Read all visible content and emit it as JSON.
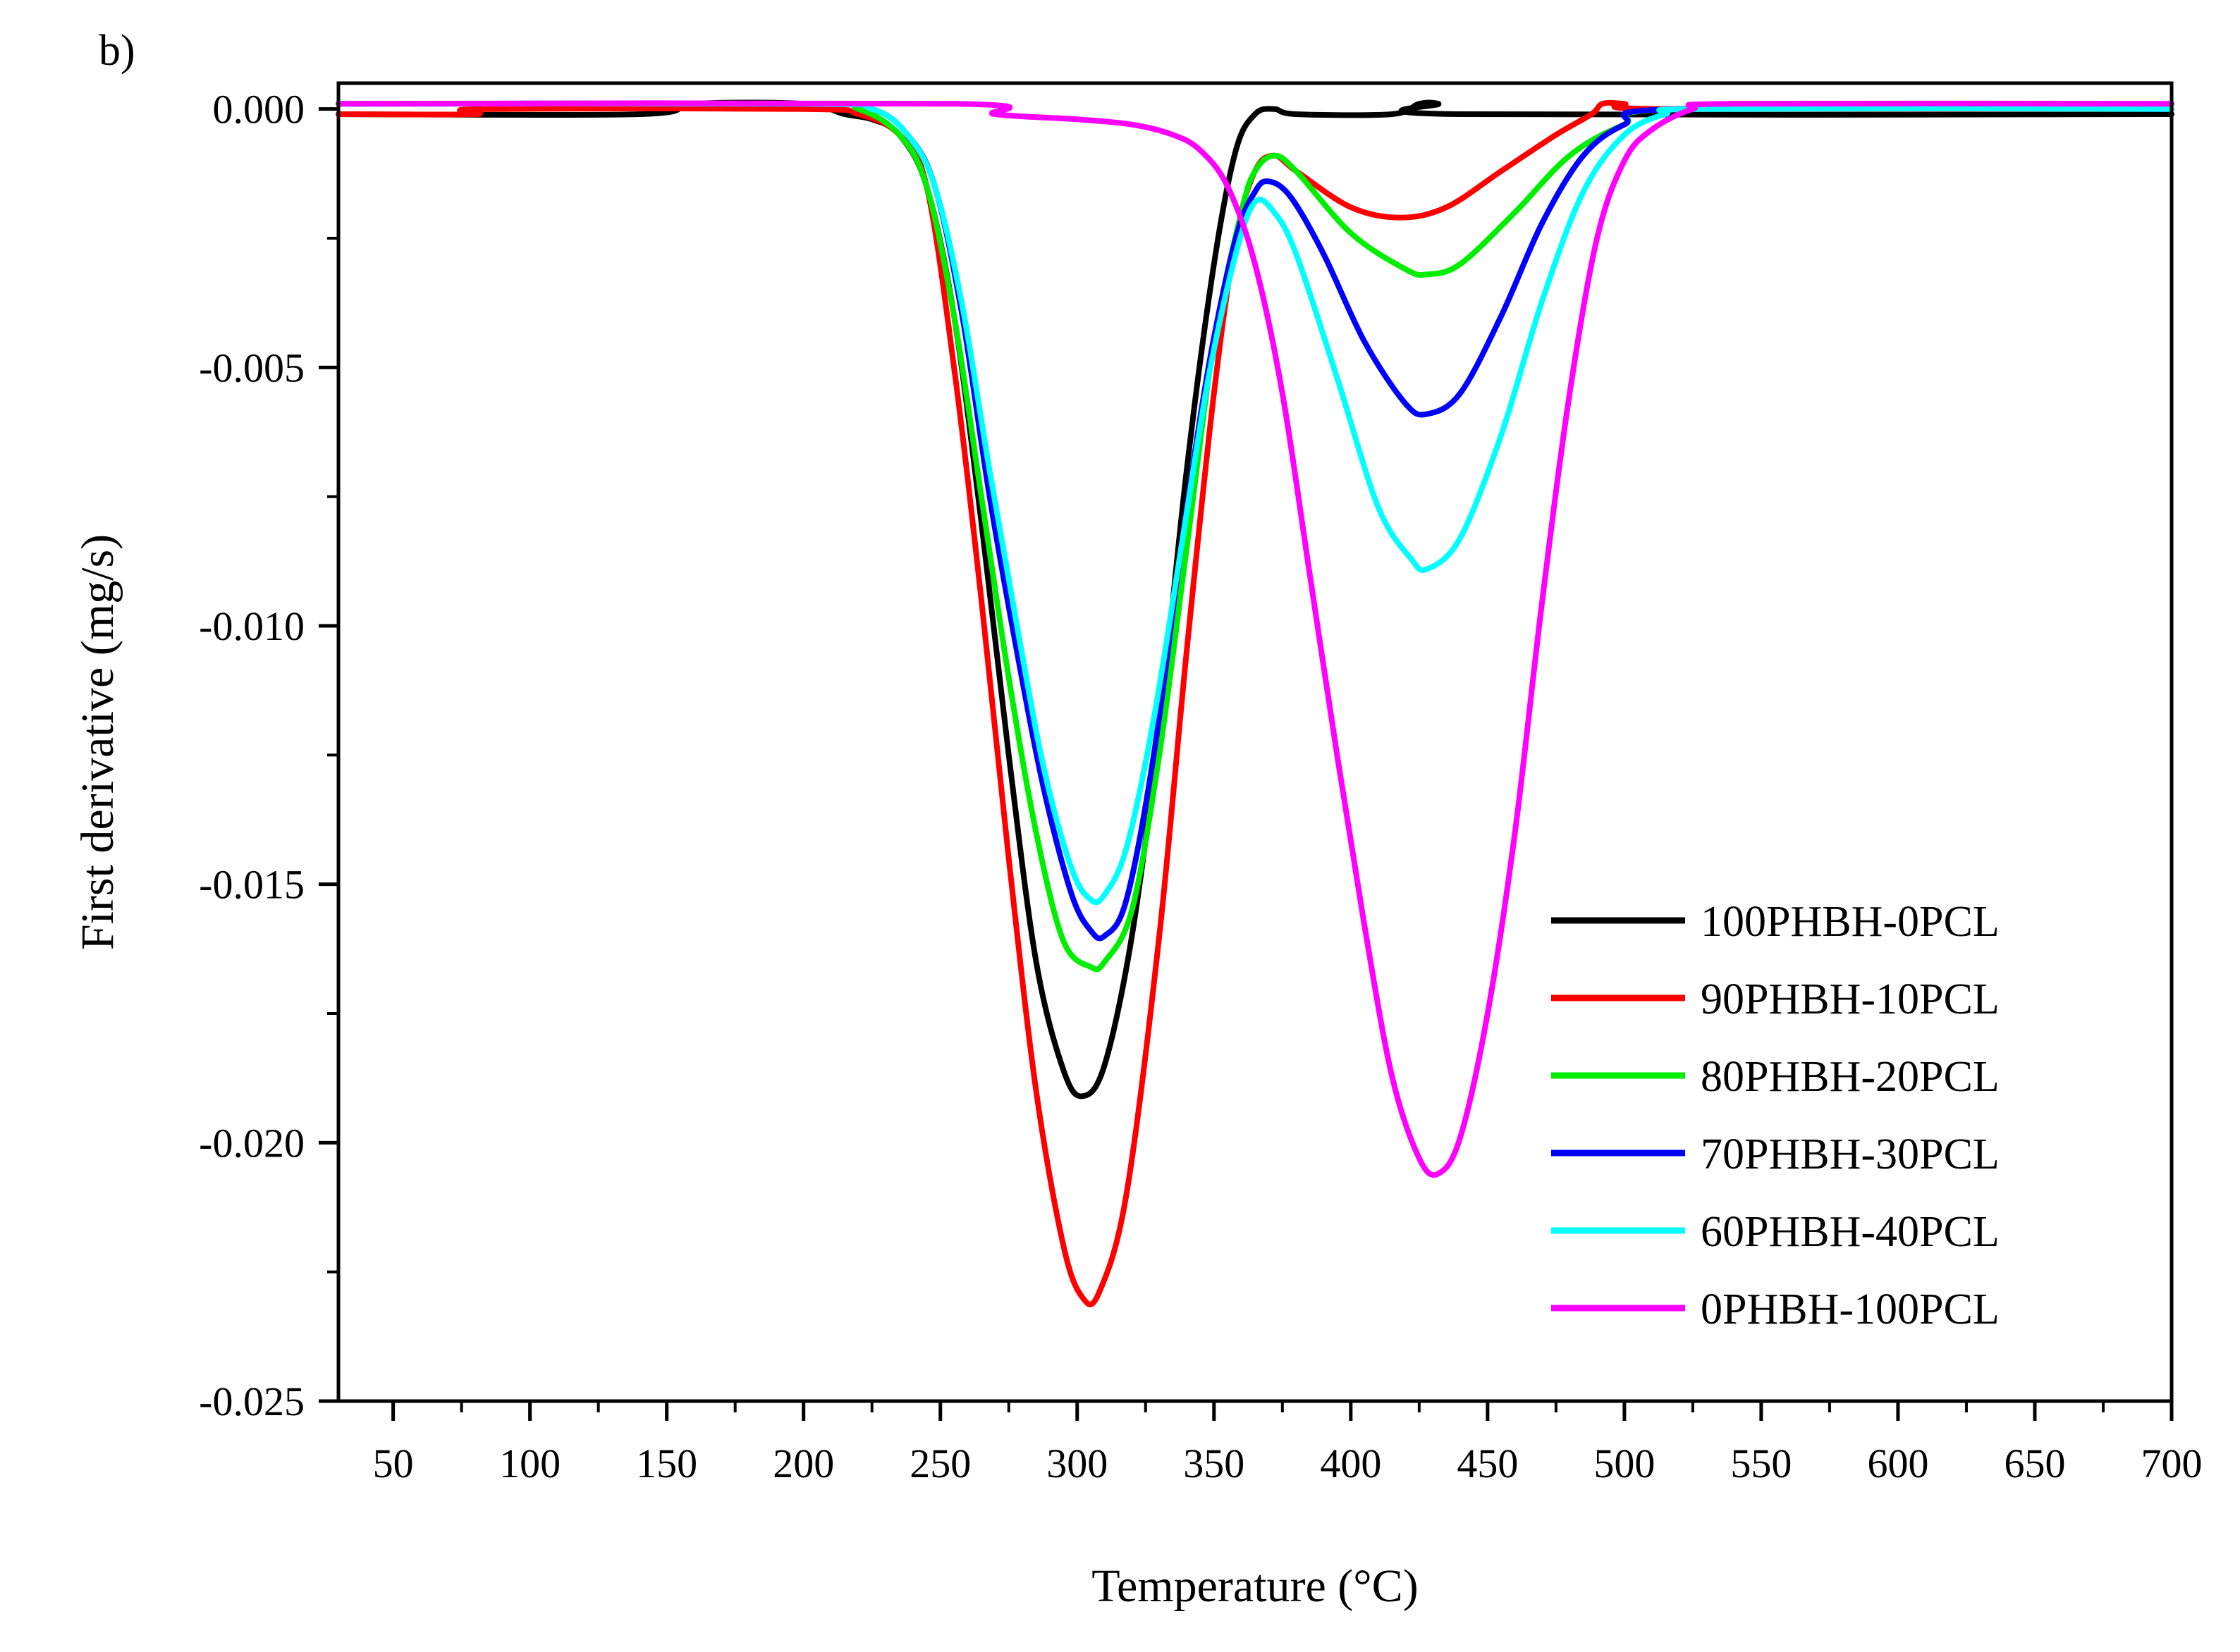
{
  "chart_data": {
    "type": "line",
    "panel_label": "b)",
    "title": "",
    "xlabel": "Temperature (°C)",
    "ylabel": "First derivative (mg/s)",
    "xlim": [
      30,
      700
    ],
    "ylim": [
      -0.025,
      0.0005
    ],
    "x_ticks": [
      50,
      100,
      150,
      200,
      250,
      300,
      350,
      400,
      450,
      500,
      550,
      600,
      650,
      700
    ],
    "x_tick_labels": [
      "50",
      "100",
      "150",
      "200",
      "250",
      "300",
      "350",
      "400",
      "450",
      "500",
      "550",
      "600",
      "650",
      "700"
    ],
    "y_ticks": [
      0.0,
      -0.005,
      -0.01,
      -0.015,
      -0.02,
      -0.025
    ],
    "y_tick_labels": [
      "0.000",
      "-0.005",
      "-0.010",
      "-0.015",
      "-0.020",
      "-0.025"
    ],
    "grid": false,
    "legend_position": "lower-right",
    "series": [
      {
        "name": "100PHBH-0PCL",
        "color": "#000000",
        "points": [
          [
            30,
            -0.0001
          ],
          [
            140,
            -0.0001
          ],
          [
            160,
            0.0001
          ],
          [
            200,
            0.0001
          ],
          [
            215,
            -0.0001
          ],
          [
            225,
            -0.0002
          ],
          [
            235,
            -0.0005
          ],
          [
            245,
            -0.0015
          ],
          [
            255,
            -0.004
          ],
          [
            265,
            -0.008
          ],
          [
            275,
            -0.0125
          ],
          [
            285,
            -0.0165
          ],
          [
            295,
            -0.0186
          ],
          [
            302,
            -0.0191
          ],
          [
            310,
            -0.0185
          ],
          [
            320,
            -0.016
          ],
          [
            330,
            -0.012
          ],
          [
            340,
            -0.007
          ],
          [
            350,
            -0.003
          ],
          [
            358,
            -0.0008
          ],
          [
            365,
            -0.0001
          ],
          [
            372,
            0.0
          ],
          [
            380,
            -0.0001
          ],
          [
            415,
            -0.0001
          ],
          [
            425,
            0.0001
          ],
          [
            432,
            0.0001
          ],
          [
            440,
            -0.0001
          ],
          [
            700,
            -0.0001
          ]
        ]
      },
      {
        "name": "90PHBH-10PCL",
        "color": "#ff0000",
        "points": [
          [
            30,
            -0.0001
          ],
          [
            80,
            -0.0001
          ],
          [
            82,
            0.0
          ],
          [
            200,
            0.0
          ],
          [
            220,
            -0.0001
          ],
          [
            235,
            -0.0005
          ],
          [
            245,
            -0.0015
          ],
          [
            255,
            -0.005
          ],
          [
            265,
            -0.0095
          ],
          [
            275,
            -0.0145
          ],
          [
            285,
            -0.019
          ],
          [
            295,
            -0.022
          ],
          [
            302,
            -0.023
          ],
          [
            308,
            -0.0229
          ],
          [
            318,
            -0.021
          ],
          [
            330,
            -0.016
          ],
          [
            340,
            -0.0105
          ],
          [
            350,
            -0.0055
          ],
          [
            358,
            -0.0025
          ],
          [
            365,
            -0.0012
          ],
          [
            372,
            -0.0009
          ],
          [
            380,
            -0.0012
          ],
          [
            400,
            -0.0019
          ],
          [
            418,
            -0.0021
          ],
          [
            435,
            -0.0019
          ],
          [
            455,
            -0.0012
          ],
          [
            475,
            -0.0005
          ],
          [
            488,
            -0.0001
          ],
          [
            492,
            0.0001
          ],
          [
            500,
            0.0001
          ],
          [
            515,
            0.0
          ],
          [
            700,
            0.0
          ]
        ]
      },
      {
        "name": "80PHBH-20PCL",
        "color": "#00ee00",
        "points": [
          [
            30,
            0.0001
          ],
          [
            200,
            0.0001
          ],
          [
            220,
            0.0
          ],
          [
            235,
            -0.0005
          ],
          [
            245,
            -0.0015
          ],
          [
            255,
            -0.004
          ],
          [
            265,
            -0.0075
          ],
          [
            275,
            -0.011
          ],
          [
            285,
            -0.014
          ],
          [
            295,
            -0.0161
          ],
          [
            305,
            -0.0166
          ],
          [
            310,
            -0.0165
          ],
          [
            320,
            -0.0155
          ],
          [
            330,
            -0.0125
          ],
          [
            340,
            -0.0085
          ],
          [
            350,
            -0.0045
          ],
          [
            360,
            -0.002
          ],
          [
            365,
            -0.0012
          ],
          [
            372,
            -0.0009
          ],
          [
            380,
            -0.0012
          ],
          [
            400,
            -0.0024
          ],
          [
            420,
            -0.0031
          ],
          [
            428,
            -0.0032
          ],
          [
            440,
            -0.003
          ],
          [
            460,
            -0.002
          ],
          [
            480,
            -0.0009
          ],
          [
            500,
            -0.0003
          ],
          [
            520,
            0.0
          ],
          [
            700,
            0.0001
          ]
        ]
      },
      {
        "name": "70PHBH-30PCL",
        "color": "#0000ff",
        "points": [
          [
            30,
            0.0001
          ],
          [
            200,
            0.0001
          ],
          [
            225,
            0.0
          ],
          [
            238,
            -0.0005
          ],
          [
            248,
            -0.0015
          ],
          [
            258,
            -0.004
          ],
          [
            268,
            -0.0075
          ],
          [
            278,
            -0.0105
          ],
          [
            288,
            -0.0132
          ],
          [
            298,
            -0.0152
          ],
          [
            305,
            -0.0159
          ],
          [
            310,
            -0.016
          ],
          [
            318,
            -0.0153
          ],
          [
            328,
            -0.0125
          ],
          [
            338,
            -0.0085
          ],
          [
            348,
            -0.005
          ],
          [
            358,
            -0.0025
          ],
          [
            365,
            -0.0016
          ],
          [
            370,
            -0.0014
          ],
          [
            378,
            -0.0017
          ],
          [
            390,
            -0.0028
          ],
          [
            405,
            -0.0045
          ],
          [
            420,
            -0.0057
          ],
          [
            428,
            -0.0059
          ],
          [
            440,
            -0.0055
          ],
          [
            455,
            -0.004
          ],
          [
            470,
            -0.0022
          ],
          [
            485,
            -0.0009
          ],
          [
            500,
            -0.0003
          ],
          [
            520,
            0.0
          ],
          [
            700,
            0.0
          ]
        ]
      },
      {
        "name": "60PHBH-40PCL",
        "color": "#00ffff",
        "points": [
          [
            30,
            0.0001
          ],
          [
            200,
            0.0001
          ],
          [
            225,
            0.0
          ],
          [
            238,
            -0.0005
          ],
          [
            248,
            -0.0015
          ],
          [
            258,
            -0.0038
          ],
          [
            268,
            -0.007
          ],
          [
            278,
            -0.01
          ],
          [
            288,
            -0.0128
          ],
          [
            298,
            -0.0147
          ],
          [
            305,
            -0.0153
          ],
          [
            310,
            -0.0152
          ],
          [
            318,
            -0.0143
          ],
          [
            328,
            -0.0118
          ],
          [
            338,
            -0.0085
          ],
          [
            348,
            -0.0052
          ],
          [
            358,
            -0.0028
          ],
          [
            365,
            -0.0018
          ],
          [
            372,
            -0.002
          ],
          [
            380,
            -0.0028
          ],
          [
            395,
            -0.0052
          ],
          [
            410,
            -0.0077
          ],
          [
            422,
            -0.0087
          ],
          [
            428,
            -0.0089
          ],
          [
            440,
            -0.0083
          ],
          [
            455,
            -0.0063
          ],
          [
            470,
            -0.0037
          ],
          [
            485,
            -0.0016
          ],
          [
            500,
            -0.0005
          ],
          [
            515,
            -0.0001
          ],
          [
            530,
            0.0
          ],
          [
            700,
            0.0
          ]
        ]
      },
      {
        "name": "0PHBH-100PCL",
        "color": "#ff00ff",
        "points": [
          [
            30,
            0.0001
          ],
          [
            255,
            0.0001
          ],
          [
            270,
            -0.0001
          ],
          [
            300,
            -0.0002
          ],
          [
            320,
            -0.0003
          ],
          [
            335,
            -0.0005
          ],
          [
            345,
            -0.0008
          ],
          [
            355,
            -0.0015
          ],
          [
            365,
            -0.003
          ],
          [
            375,
            -0.0055
          ],
          [
            385,
            -0.009
          ],
          [
            395,
            -0.0125
          ],
          [
            405,
            -0.0158
          ],
          [
            415,
            -0.0187
          ],
          [
            425,
            -0.0203
          ],
          [
            432,
            -0.0206
          ],
          [
            440,
            -0.0199
          ],
          [
            450,
            -0.0175
          ],
          [
            460,
            -0.014
          ],
          [
            470,
            -0.0095
          ],
          [
            480,
            -0.0055
          ],
          [
            490,
            -0.0025
          ],
          [
            500,
            -0.001
          ],
          [
            510,
            -0.0004
          ],
          [
            525,
            0.0
          ],
          [
            540,
            0.0001
          ],
          [
            700,
            0.0001
          ]
        ]
      }
    ]
  }
}
